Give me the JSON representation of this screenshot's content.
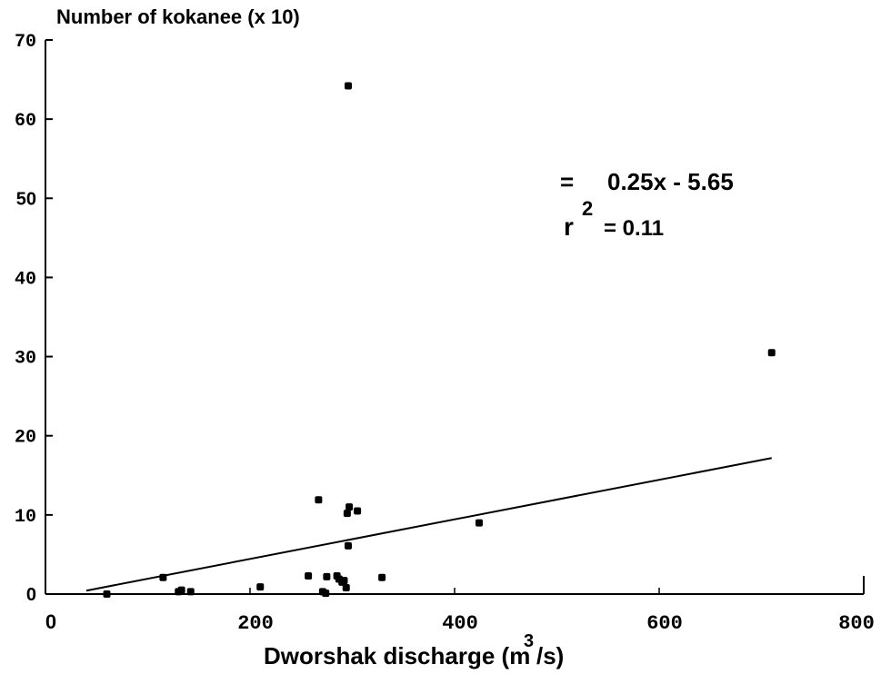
{
  "chart_data": {
    "type": "scatter",
    "title": "",
    "ylabel": "Number of kokanee (x 10)",
    "xlabel_main": "Dworshak discharge (m",
    "xlabel_sup": "3",
    "xlabel_tail": "/s)",
    "xlim": [
      0,
      800
    ],
    "ylim": [
      0,
      70
    ],
    "x_ticks": [
      "0",
      "200",
      "400",
      "600",
      "800"
    ],
    "x_tick_values": [
      0,
      200,
      400,
      600,
      800
    ],
    "y_ticks": [
      "0",
      "10",
      "20",
      "30",
      "40",
      "50",
      "60",
      "70"
    ],
    "y_tick_values": [
      0,
      10,
      20,
      30,
      40,
      50,
      60,
      70
    ],
    "grid": false,
    "series": [
      {
        "points": [
          {
            "x": 60,
            "y": 0.0
          },
          {
            "x": 115,
            "y": 2.1
          },
          {
            "x": 130,
            "y": 0.3
          },
          {
            "x": 133,
            "y": 0.5
          },
          {
            "x": 142,
            "y": 0.3
          },
          {
            "x": 210,
            "y": 0.9
          },
          {
            "x": 257,
            "y": 2.3
          },
          {
            "x": 267,
            "y": 11.9
          },
          {
            "x": 271,
            "y": 0.3
          },
          {
            "x": 274,
            "y": 0.1
          },
          {
            "x": 275,
            "y": 2.2
          },
          {
            "x": 285,
            "y": 2.3
          },
          {
            "x": 287,
            "y": 1.9
          },
          {
            "x": 290,
            "y": 1.5
          },
          {
            "x": 292,
            "y": 1.7
          },
          {
            "x": 294,
            "y": 0.8
          },
          {
            "x": 295,
            "y": 10.2
          },
          {
            "x": 296,
            "y": 6.1
          },
          {
            "x": 297,
            "y": 11.0
          },
          {
            "x": 296,
            "y": 64.2
          },
          {
            "x": 305,
            "y": 10.5
          },
          {
            "x": 329,
            "y": 2.1
          },
          {
            "x": 424,
            "y": 9.0
          },
          {
            "x": 710,
            "y": 30.5
          }
        ]
      }
    ],
    "regression": {
      "slope": 0.025,
      "intercept": -0.565,
      "x_range": [
        40,
        710
      ],
      "equation_prefix": "=",
      "equation": "0.25x - 5.65",
      "r2_base": "r",
      "r2_sup": "2",
      "r2_eq": "= 0.11"
    }
  }
}
